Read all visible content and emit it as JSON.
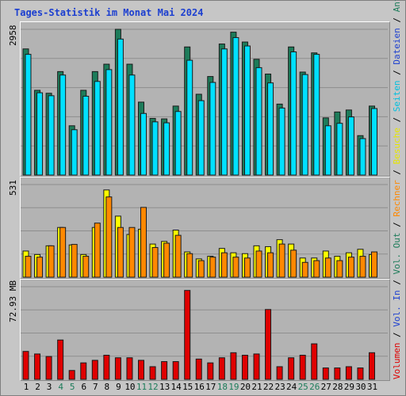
{
  "chart_data": {
    "type": "bar",
    "title": "Tages-Statistik im Monat Mai 2024",
    "categories": [
      "1",
      "2",
      "3",
      "4",
      "5",
      "6",
      "7",
      "8",
      "9",
      "10",
      "11",
      "12",
      "13",
      "14",
      "15",
      "16",
      "17",
      "18",
      "19",
      "20",
      "21",
      "22",
      "23",
      "24",
      "25",
      "26",
      "27",
      "28",
      "29",
      "30",
      "31"
    ],
    "weekend_days": [
      "4",
      "5",
      "11",
      "12",
      "18",
      "19",
      "25",
      "26"
    ],
    "panels": [
      {
        "ymax_label": "2958",
        "ymax": 2958,
        "series": [
          {
            "name": "Anfragen",
            "color": "#1d7c5a",
            "values": [
              2560,
              1720,
              1660,
              2100,
              1000,
              1720,
              2100,
              2250,
              2958,
              2250,
              1480,
              1150,
              1140,
              1400,
              2600,
              1640,
              2000,
              2660,
              2900,
              2700,
              2350,
              2050,
              1440,
              2600,
              2090,
              2480,
              1160,
              1280,
              1320,
              800,
              1400
            ]
          },
          {
            "name": "Dateien",
            "color": "#00e0ff",
            "values": [
              2450,
              1670,
              1610,
              2030,
              920,
              1600,
              1900,
              2140,
              2760,
              2030,
              1250,
              1080,
              1060,
              1290,
              2330,
              1510,
              1880,
              2560,
              2790,
              2620,
              2180,
              1870,
              1360,
              2500,
              2040,
              2450,
              1000,
              1050,
              1180,
              740,
              1350
            ]
          },
          {
            "name": "Seiten",
            "color": "#00c0e0",
            "values": []
          }
        ]
      },
      {
        "ymax_label": "531",
        "ymax": 531,
        "series": [
          {
            "name": "Besuche",
            "color": "#ffff00",
            "values": [
              150,
              130,
              180,
              285,
              185,
              130,
              285,
              500,
              350,
              245,
              275,
              190,
              205,
              270,
              145,
              105,
              120,
              165,
              140,
              135,
              180,
              175,
              215,
              190,
              110,
              110,
              150,
              120,
              140,
              160,
              130
            ]
          },
          {
            "name": "Rechner",
            "color": "#ff8800",
            "values": [
              120,
              115,
              180,
              285,
              188,
              120,
              310,
              460,
              285,
              285,
              400,
              170,
              195,
              240,
              135,
              95,
              115,
              140,
              115,
              110,
              150,
              140,
              190,
              155,
              85,
              95,
              110,
              95,
              115,
              120,
              145
            ]
          }
        ]
      },
      {
        "ymax_label": "72.93 MB",
        "ymax": 72.93,
        "series": [
          {
            "name": "Volumen",
            "color": "#e00000",
            "values": [
              22,
              20,
              18,
              31,
              7,
              13,
              15,
              19,
              17,
              17,
              15,
              10,
              14,
              14,
              70,
              16,
              13,
              17,
              21,
              19,
              20,
              55,
              10,
              17,
              19,
              28,
              9,
              9,
              10,
              9,
              21
            ]
          },
          {
            "name": "Vol. In",
            "color": "#0000ff",
            "values": []
          },
          {
            "name": "Vol. Out",
            "color": "#00a040",
            "values": []
          }
        ]
      }
    ]
  },
  "legend_right": [
    {
      "text": "Volumen",
      "color": "#e00000"
    },
    {
      "text": " / ",
      "color": "#000000"
    },
    {
      "text": "Vol. In",
      "color": "#1c3fd0"
    },
    {
      "text": " / ",
      "color": "#000000"
    },
    {
      "text": "Vol. Out",
      "color": "#1d7c5a"
    },
    {
      "text": " / ",
      "color": "#000000"
    },
    {
      "text": "Rechner",
      "color": "#ff8800"
    },
    {
      "text": " / ",
      "color": "#000000"
    },
    {
      "text": "Besuche",
      "color": "#e6e600"
    },
    {
      "text": " / ",
      "color": "#000000"
    },
    {
      "text": "Seiten",
      "color": "#00c0e0"
    },
    {
      "text": " / ",
      "color": "#000000"
    },
    {
      "text": "Dateien",
      "color": "#1c3fd0"
    },
    {
      "text": " / ",
      "color": "#000000"
    },
    {
      "text": "Anfragen",
      "color": "#1d7c5a"
    }
  ]
}
